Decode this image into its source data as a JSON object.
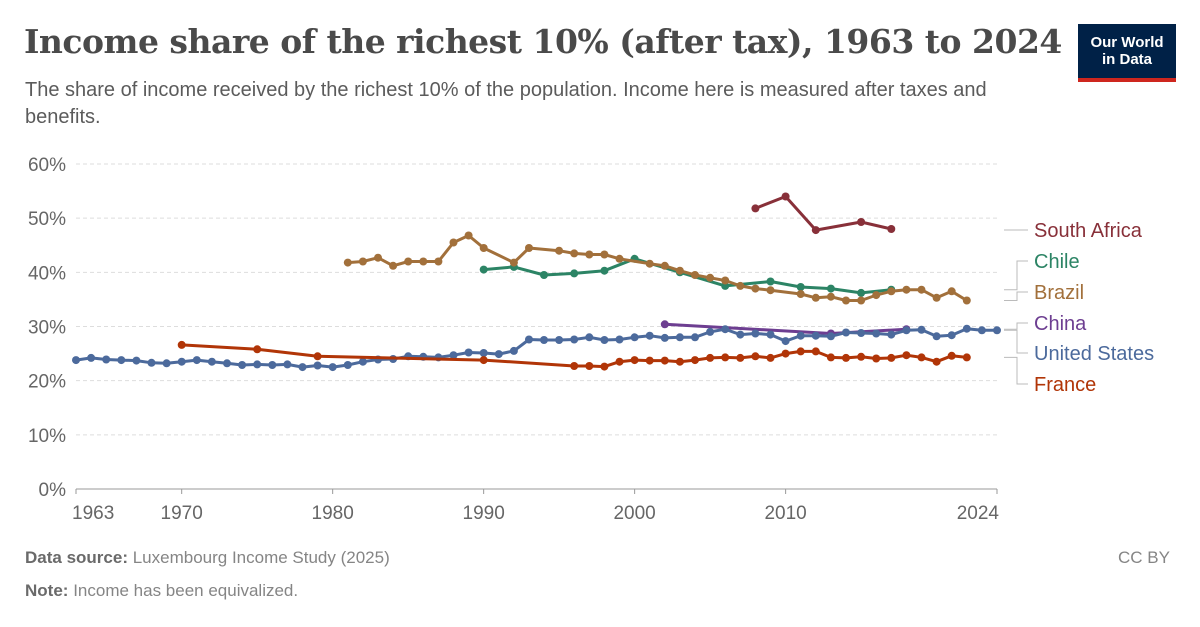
{
  "header": {
    "title": "Income share of the richest 10% (after tax), 1963 to 2024",
    "subtitle": "The share of income received by the richest 10% of the population. Income here is measured after taxes and benefits."
  },
  "logo": {
    "line1": "Our World",
    "line2": "in Data"
  },
  "footer": {
    "source_label": "Data source:",
    "source_value": "Luxembourg Income Study (2025)",
    "note_label": "Note:",
    "note_value": "Income has been equivalized.",
    "license": "CC BY"
  },
  "chart_data": {
    "type": "line",
    "title": "Income share of the richest 10% (after tax), 1963 to 2024",
    "xlabel": "",
    "ylabel": "",
    "xlim": [
      1963,
      2024
    ],
    "ylim": [
      0,
      60
    ],
    "x_ticks": [
      1963,
      1970,
      1980,
      1990,
      2000,
      2010,
      2024
    ],
    "y_ticks": [
      0,
      10,
      20,
      30,
      40,
      50,
      60
    ],
    "y_tick_suffix": "%",
    "grid": "horizontal dashed",
    "legend": "right, line-end labels",
    "series": [
      {
        "name": "South Africa",
        "color": "#883039",
        "points": [
          [
            2008,
            51.8
          ],
          [
            2010,
            54.0
          ],
          [
            2012,
            47.8
          ],
          [
            2015,
            49.3
          ],
          [
            2017,
            48.0
          ]
        ]
      },
      {
        "name": "Chile",
        "color": "#2c8465",
        "points": [
          [
            1990,
            40.5
          ],
          [
            1992,
            41.0
          ],
          [
            1994,
            39.5
          ],
          [
            1996,
            39.8
          ],
          [
            1998,
            40.3
          ],
          [
            2000,
            42.5
          ],
          [
            2003,
            40.0
          ],
          [
            2006,
            37.5
          ],
          [
            2009,
            38.3
          ],
          [
            2011,
            37.3
          ],
          [
            2013,
            37.0
          ],
          [
            2015,
            36.2
          ],
          [
            2017,
            36.8
          ]
        ]
      },
      {
        "name": "Brazil",
        "color": "#a2703b",
        "points": [
          [
            1981,
            41.8
          ],
          [
            1982,
            42.0
          ],
          [
            1983,
            42.7
          ],
          [
            1984,
            41.2
          ],
          [
            1985,
            42.0
          ],
          [
            1986,
            42.0
          ],
          [
            1987,
            42.0
          ],
          [
            1988,
            45.5
          ],
          [
            1989,
            46.8
          ],
          [
            1990,
            44.5
          ],
          [
            1992,
            41.8
          ],
          [
            1993,
            44.5
          ],
          [
            1995,
            44.0
          ],
          [
            1996,
            43.5
          ],
          [
            1997,
            43.3
          ],
          [
            1998,
            43.3
          ],
          [
            1999,
            42.5
          ],
          [
            2001,
            41.6
          ],
          [
            2002,
            41.2
          ],
          [
            2003,
            40.3
          ],
          [
            2004,
            39.5
          ],
          [
            2005,
            39.0
          ],
          [
            2006,
            38.5
          ],
          [
            2007,
            37.5
          ],
          [
            2008,
            37.0
          ],
          [
            2009,
            36.7
          ],
          [
            2011,
            36.0
          ],
          [
            2012,
            35.3
          ],
          [
            2013,
            35.5
          ],
          [
            2014,
            34.8
          ],
          [
            2015,
            34.8
          ],
          [
            2016,
            35.8
          ],
          [
            2017,
            36.5
          ],
          [
            2018,
            36.8
          ],
          [
            2019,
            36.8
          ],
          [
            2020,
            35.3
          ],
          [
            2021,
            36.5
          ],
          [
            2022,
            34.8
          ]
        ]
      },
      {
        "name": "China",
        "color": "#6d3e91",
        "points": [
          [
            2002,
            30.4
          ],
          [
            2013,
            28.7
          ],
          [
            2018,
            29.5
          ]
        ]
      },
      {
        "name": "United States",
        "color": "#4c6a9c",
        "points": [
          [
            1963,
            23.8
          ],
          [
            1964,
            24.2
          ],
          [
            1965,
            23.9
          ],
          [
            1966,
            23.8
          ],
          [
            1967,
            23.7
          ],
          [
            1968,
            23.3
          ],
          [
            1969,
            23.2
          ],
          [
            1970,
            23.5
          ],
          [
            1971,
            23.8
          ],
          [
            1972,
            23.5
          ],
          [
            1973,
            23.2
          ],
          [
            1974,
            22.9
          ],
          [
            1975,
            23.0
          ],
          [
            1976,
            22.9
          ],
          [
            1977,
            23.0
          ],
          [
            1978,
            22.5
          ],
          [
            1979,
            22.8
          ],
          [
            1980,
            22.5
          ],
          [
            1981,
            22.9
          ],
          [
            1982,
            23.5
          ],
          [
            1983,
            23.9
          ],
          [
            1984,
            24.0
          ],
          [
            1985,
            24.5
          ],
          [
            1986,
            24.4
          ],
          [
            1987,
            24.3
          ],
          [
            1988,
            24.7
          ],
          [
            1989,
            25.2
          ],
          [
            1990,
            25.1
          ],
          [
            1991,
            24.9
          ],
          [
            1992,
            25.5
          ],
          [
            1993,
            27.6
          ],
          [
            1994,
            27.5
          ],
          [
            1995,
            27.5
          ],
          [
            1996,
            27.6
          ],
          [
            1997,
            28.0
          ],
          [
            1998,
            27.5
          ],
          [
            1999,
            27.6
          ],
          [
            2000,
            28.0
          ],
          [
            2001,
            28.3
          ],
          [
            2002,
            27.9
          ],
          [
            2003,
            28.0
          ],
          [
            2004,
            28.0
          ],
          [
            2005,
            29.0
          ],
          [
            2006,
            29.5
          ],
          [
            2007,
            28.5
          ],
          [
            2008,
            28.7
          ],
          [
            2009,
            28.5
          ],
          [
            2010,
            27.3
          ],
          [
            2011,
            28.3
          ],
          [
            2012,
            28.3
          ],
          [
            2013,
            28.2
          ],
          [
            2014,
            28.9
          ],
          [
            2015,
            28.8
          ],
          [
            2016,
            28.7
          ],
          [
            2017,
            28.5
          ],
          [
            2018,
            29.3
          ],
          [
            2019,
            29.4
          ],
          [
            2020,
            28.2
          ],
          [
            2021,
            28.4
          ],
          [
            2022,
            29.6
          ],
          [
            2023,
            29.3
          ],
          [
            2024,
            29.3
          ]
        ]
      },
      {
        "name": "France",
        "color": "#b13507",
        "points": [
          [
            1970,
            26.6
          ],
          [
            1975,
            25.8
          ],
          [
            1979,
            24.5
          ],
          [
            1990,
            23.8
          ],
          [
            1996,
            22.7
          ],
          [
            1997,
            22.7
          ],
          [
            1998,
            22.6
          ],
          [
            1999,
            23.5
          ],
          [
            2000,
            23.8
          ],
          [
            2001,
            23.7
          ],
          [
            2002,
            23.7
          ],
          [
            2003,
            23.5
          ],
          [
            2004,
            23.8
          ],
          [
            2005,
            24.2
          ],
          [
            2006,
            24.3
          ],
          [
            2007,
            24.2
          ],
          [
            2008,
            24.5
          ],
          [
            2009,
            24.2
          ],
          [
            2010,
            25.0
          ],
          [
            2011,
            25.4
          ],
          [
            2012,
            25.4
          ],
          [
            2013,
            24.3
          ],
          [
            2014,
            24.2
          ],
          [
            2015,
            24.4
          ],
          [
            2016,
            24.1
          ],
          [
            2017,
            24.2
          ],
          [
            2018,
            24.7
          ],
          [
            2019,
            24.3
          ],
          [
            2020,
            23.5
          ],
          [
            2021,
            24.6
          ],
          [
            2022,
            24.3
          ]
        ]
      }
    ]
  }
}
